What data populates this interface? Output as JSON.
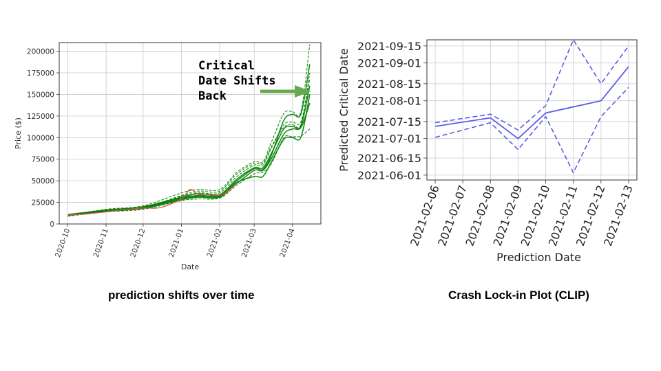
{
  "captions": {
    "left": "prediction shifts over time",
    "right": "Crash Lock-in Plot (CLIP)"
  },
  "chart_data": [
    {
      "type": "line",
      "title": "",
      "xlabel": "Date",
      "ylabel": "Price ($)",
      "xlim": [
        "2020-09-24",
        "2021-04-24"
      ],
      "ylim": [
        0,
        210000
      ],
      "x_ticks": [
        "2020-10",
        "2020-11",
        "2020-12",
        "2021-01",
        "2021-02",
        "2021-03",
        "2021-04"
      ],
      "y_ticks": [
        0,
        25000,
        50000,
        75000,
        100000,
        125000,
        150000,
        175000,
        200000
      ],
      "y_tick_labels": [
        "0",
        "25000",
        "50000",
        "75000",
        "100000",
        "125000",
        "150000",
        "175000",
        "200000"
      ],
      "grid": true,
      "annotation": {
        "lines": [
          "Critical",
          "Date Shifts",
          "Back"
        ],
        "arrow_color": "#6aa84f"
      },
      "colors": {
        "fits": "#008000",
        "price": "#e05050"
      },
      "price_series": {
        "name": "",
        "x": [
          "2020-10-01",
          "2020-10-15",
          "2020-11-01",
          "2020-11-15",
          "2020-12-01",
          "2020-12-15",
          "2021-01-01",
          "2021-01-08",
          "2021-01-15",
          "2021-01-22",
          "2021-02-01",
          "2021-02-08",
          "2021-02-15"
        ],
        "y": [
          10500,
          11500,
          14000,
          16500,
          18500,
          19000,
          29000,
          40000,
          34000,
          34500,
          33500,
          38500,
          47000
        ]
      },
      "fit_series": [
        {
          "x": [
            "2020-10-01",
            "2020-11-01",
            "2020-12-01",
            "2021-01-01",
            "2021-01-15",
            "2021-02-01",
            "2021-02-15",
            "2021-03-01",
            "2021-03-08",
            "2021-03-15",
            "2021-03-25",
            "2021-04-01",
            "2021-04-08",
            "2021-04-15"
          ],
          "y": [
            10000,
            15000,
            18000,
            28000,
            31000,
            31000,
            48000,
            55000,
            55000,
            72000,
            98000,
            100000,
            101000,
            150000
          ]
        },
        {
          "x": [
            "2020-10-01",
            "2020-11-01",
            "2020-12-01",
            "2021-01-01",
            "2021-01-15",
            "2021-02-01",
            "2021-02-15",
            "2021-03-01",
            "2021-03-08",
            "2021-03-15",
            "2021-03-25",
            "2021-04-01",
            "2021-04-08",
            "2021-04-15"
          ],
          "y": [
            9000,
            14000,
            17000,
            27000,
            29000,
            30000,
            45000,
            58000,
            60000,
            70000,
            100000,
            101000,
            102000,
            110000
          ]
        },
        {
          "x": [
            "2020-10-01",
            "2020-11-01",
            "2020-12-01",
            "2021-01-01",
            "2021-01-15",
            "2021-02-01",
            "2021-02-15",
            "2021-03-01",
            "2021-03-08",
            "2021-03-15",
            "2021-03-25",
            "2021-04-01",
            "2021-04-08",
            "2021-04-15"
          ],
          "y": [
            11000,
            16000,
            20000,
            31000,
            35000,
            34000,
            52000,
            65000,
            65000,
            82000,
            110000,
            113000,
            114000,
            160000
          ]
        },
        {
          "x": [
            "2020-10-01",
            "2020-11-01",
            "2020-12-01",
            "2021-01-01",
            "2021-01-15",
            "2021-02-01",
            "2021-02-15",
            "2021-03-01",
            "2021-03-08",
            "2021-03-15",
            "2021-03-25",
            "2021-04-01",
            "2021-04-08",
            "2021-04-15"
          ],
          "y": [
            10500,
            16500,
            19000,
            33000,
            38000,
            38000,
            58000,
            70000,
            70000,
            90000,
            112000,
            115000,
            116000,
            175000
          ]
        },
        {
          "x": [
            "2020-10-01",
            "2020-11-01",
            "2020-12-01",
            "2021-01-01",
            "2021-01-15",
            "2021-02-01",
            "2021-02-15",
            "2021-03-01",
            "2021-03-08",
            "2021-03-15",
            "2021-03-25",
            "2021-04-01",
            "2021-04-08",
            "2021-04-15"
          ],
          "y": [
            10000,
            15500,
            19500,
            30000,
            33000,
            33000,
            50000,
            64000,
            63000,
            80000,
            120000,
            127000,
            128000,
            185000
          ]
        },
        {
          "x": [
            "2020-10-01",
            "2020-11-01",
            "2020-12-01",
            "2021-01-01",
            "2021-01-15",
            "2021-02-01",
            "2021-02-15",
            "2021-03-01",
            "2021-03-08",
            "2021-03-15",
            "2021-03-25",
            "2021-04-01",
            "2021-04-08",
            "2021-04-15"
          ],
          "y": [
            9500,
            17000,
            21000,
            36000,
            40000,
            40000,
            60000,
            72000,
            72000,
            95000,
            128000,
            130000,
            131000,
            208000
          ]
        },
        {
          "x": [
            "2020-10-01",
            "2020-11-01",
            "2020-12-01",
            "2021-01-01",
            "2021-01-15",
            "2021-02-01",
            "2021-02-15",
            "2021-03-01",
            "2021-03-08",
            "2021-03-15",
            "2021-03-25",
            "2021-04-01",
            "2021-04-08",
            "2021-04-15"
          ],
          "y": [
            10200,
            14500,
            18500,
            29000,
            32000,
            32000,
            47000,
            62000,
            62000,
            76000,
            104000,
            110000,
            112000,
            140000
          ]
        },
        {
          "x": [
            "2020-10-01",
            "2020-11-01",
            "2020-12-01",
            "2021-01-01",
            "2021-01-15",
            "2021-02-01",
            "2021-02-15",
            "2021-03-01",
            "2021-03-08",
            "2021-03-15",
            "2021-03-25",
            "2021-04-01",
            "2021-04-08",
            "2021-04-15"
          ],
          "y": [
            10800,
            15800,
            19200,
            32000,
            36000,
            36000,
            55000,
            68000,
            68000,
            88000,
            115000,
            118000,
            119000,
            168000
          ]
        }
      ]
    },
    {
      "type": "line",
      "title": "",
      "xlabel": "Prediction Date",
      "ylabel": "Predicted Critical Date",
      "x": [
        "2021-02-06",
        "2021-02-07",
        "2021-02-08",
        "2021-02-09",
        "2021-02-10",
        "2021-02-11",
        "2021-02-12",
        "2021-02-13"
      ],
      "xlim": [
        "2021-02-06",
        "2021-02-13"
      ],
      "ylim": [
        "2021-05-28",
        "2021-09-20"
      ],
      "y_ticks": [
        "2021-06-01",
        "2021-06-15",
        "2021-07-01",
        "2021-07-15",
        "2021-08-01",
        "2021-08-15",
        "2021-09-01",
        "2021-09-15"
      ],
      "grid": true,
      "color": "#5b5be6",
      "series": [
        {
          "style": "solid",
          "points": [
            [
              "2021-02-06",
              "2021-07-11"
            ],
            [
              "2021-02-08",
              "2021-07-18"
            ],
            [
              "2021-02-09",
              "2021-07-01"
            ],
            [
              "2021-02-10",
              "2021-07-22"
            ],
            [
              "2021-02-11",
              "2021-07-27"
            ],
            [
              "2021-02-12",
              "2021-08-01"
            ],
            [
              "2021-02-13",
              "2021-08-29"
            ]
          ]
        },
        {
          "style": "dashed",
          "points": [
            [
              "2021-02-06",
              "2021-07-14"
            ],
            [
              "2021-02-08",
              "2021-07-21"
            ],
            [
              "2021-02-09",
              "2021-07-08"
            ],
            [
              "2021-02-10",
              "2021-07-28"
            ],
            [
              "2021-02-11",
              "2021-09-20"
            ],
            [
              "2021-02-12",
              "2021-08-15"
            ],
            [
              "2021-02-13",
              "2021-09-15"
            ]
          ]
        },
        {
          "style": "dashed",
          "points": [
            [
              "2021-02-06",
              "2021-07-02"
            ],
            [
              "2021-02-08",
              "2021-07-14"
            ],
            [
              "2021-02-09",
              "2021-06-22"
            ],
            [
              "2021-02-10",
              "2021-07-19"
            ],
            [
              "2021-02-11",
              "2021-06-03"
            ],
            [
              "2021-02-12",
              "2021-07-19"
            ],
            [
              "2021-02-13",
              "2021-08-12"
            ]
          ]
        }
      ]
    }
  ]
}
